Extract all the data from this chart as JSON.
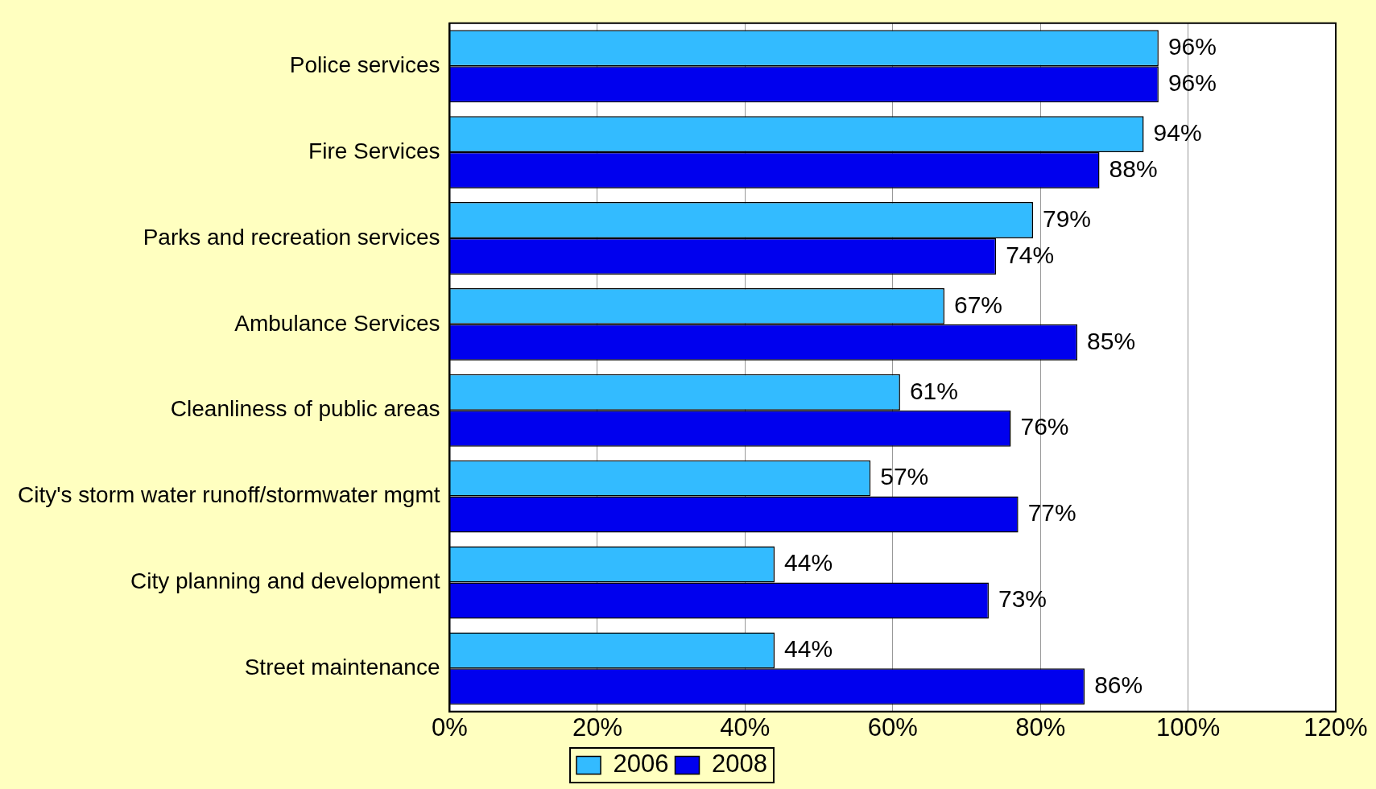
{
  "chart_data": {
    "type": "bar",
    "orientation": "horizontal",
    "categories": [
      "Police services",
      "Fire Services",
      "Parks and recreation services",
      "Ambulance Services",
      "Cleanliness of public areas",
      "City's storm water runoff/stormwater mgmt",
      "City planning and development",
      "Street maintenance"
    ],
    "series": [
      {
        "name": "2006",
        "color": "#33bbff",
        "values": [
          96,
          94,
          79,
          67,
          61,
          57,
          44,
          44
        ],
        "value_labels": [
          "96%",
          "94%",
          "79%",
          "67%",
          "61%",
          "57%",
          "44%",
          "44%"
        ]
      },
      {
        "name": "2008",
        "color": "#0000ee",
        "values": [
          96,
          88,
          74,
          85,
          76,
          77,
          73,
          86
        ],
        "value_labels": [
          "96%",
          "88%",
          "74%",
          "85%",
          "76%",
          "77%",
          "73%",
          "86%"
        ]
      }
    ],
    "xlim": [
      0,
      120
    ],
    "xticks": [
      {
        "value": 0,
        "label": "0%"
      },
      {
        "value": 20,
        "label": "20%"
      },
      {
        "value": 40,
        "label": "40%"
      },
      {
        "value": 60,
        "label": "60%"
      },
      {
        "value": 80,
        "label": "80%"
      },
      {
        "value": 100,
        "label": "100%"
      },
      {
        "value": 120,
        "label": "120%"
      }
    ],
    "grid": "x",
    "legend": "bottom"
  }
}
